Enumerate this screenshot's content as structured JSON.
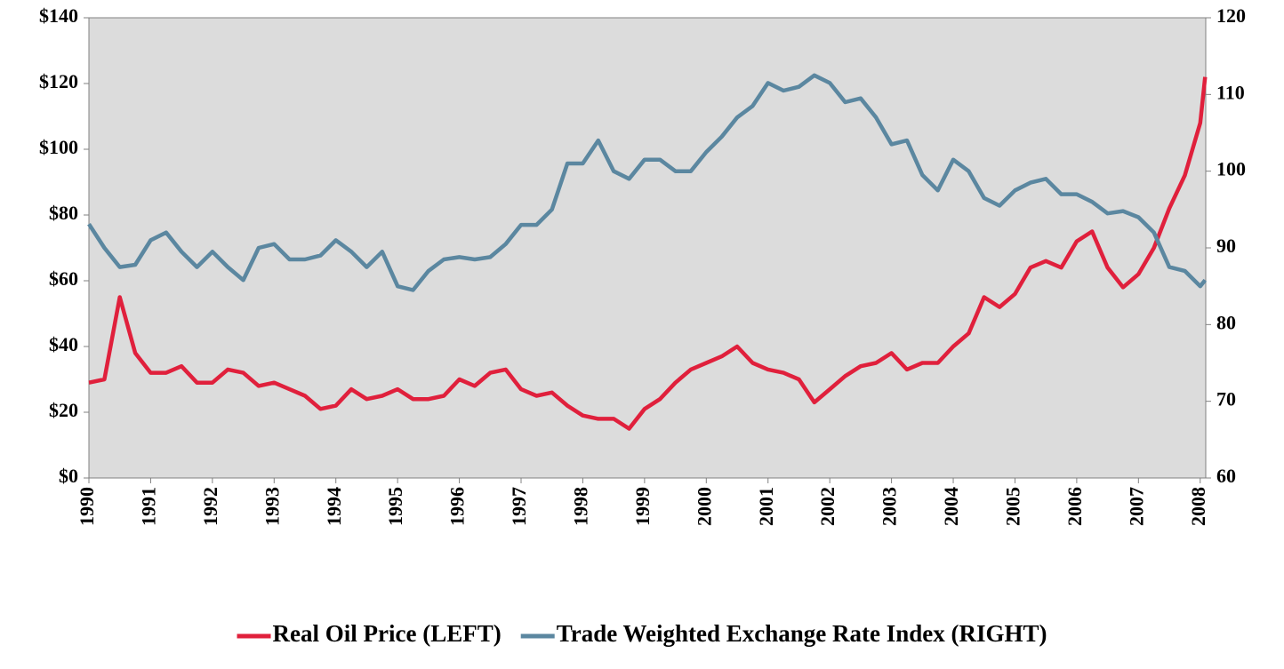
{
  "chart_data": {
    "type": "line",
    "x": [
      1990,
      1990.25,
      1990.5,
      1990.75,
      1991,
      1991.25,
      1991.5,
      1991.75,
      1992,
      1992.25,
      1992.5,
      1992.75,
      1993,
      1993.25,
      1993.5,
      1993.75,
      1994,
      1994.25,
      1994.5,
      1994.75,
      1995,
      1995.25,
      1995.5,
      1995.75,
      1996,
      1996.25,
      1996.5,
      1996.75,
      1997,
      1997.25,
      1997.5,
      1997.75,
      1998,
      1998.25,
      1998.5,
      1998.75,
      1999,
      1999.25,
      1999.5,
      1999.75,
      2000,
      2000.25,
      2000.5,
      2000.75,
      2001,
      2001.25,
      2001.5,
      2001.75,
      2002,
      2002.25,
      2002.5,
      2002.75,
      2003,
      2003.25,
      2003.5,
      2003.75,
      2004,
      2004.25,
      2004.5,
      2004.75,
      2005,
      2005.25,
      2005.5,
      2005.75,
      2006,
      2006.25,
      2006.5,
      2006.75,
      2007,
      2007.25,
      2007.5,
      2007.75,
      2008,
      2008.08
    ],
    "series": [
      {
        "name": "Real Oil Price (LEFT)",
        "color": "#e0203c",
        "axis": "y",
        "values": [
          29,
          30,
          55,
          38,
          32,
          32,
          34,
          29,
          29,
          33,
          32,
          28,
          29,
          27,
          25,
          21,
          22,
          27,
          24,
          25,
          27,
          24,
          24,
          25,
          30,
          28,
          32,
          33,
          27,
          25,
          26,
          22,
          19,
          18,
          18,
          15,
          21,
          24,
          29,
          33,
          35,
          37,
          40,
          35,
          33,
          32,
          30,
          23,
          27,
          31,
          34,
          35,
          38,
          33,
          35,
          35,
          40,
          44,
          55,
          52,
          56,
          64,
          66,
          64,
          72,
          75,
          64,
          58,
          62,
          70,
          82,
          92,
          108,
          122
        ]
      },
      {
        "name": "Trade Weighted Exchange Rate Index (RIGHT)",
        "color": "#5b87a0",
        "axis": "y2",
        "values": [
          93.1,
          90,
          87.5,
          87.8,
          91,
          92,
          89.5,
          87.5,
          89.5,
          87.5,
          85.8,
          90,
          90.5,
          88.5,
          88.5,
          89,
          91,
          89.5,
          87.5,
          89.5,
          85,
          84.5,
          87,
          88.5,
          88.8,
          88.5,
          88.8,
          90.5,
          93,
          93,
          95,
          101,
          101,
          104,
          100,
          99,
          101.5,
          101.5,
          100,
          100,
          102.5,
          104.5,
          107,
          108.5,
          111.5,
          110.5,
          111,
          112.5,
          111.5,
          109,
          109.5,
          107,
          103.5,
          104,
          99.5,
          97.5,
          101.5,
          100,
          96.5,
          95.5,
          97.5,
          98.5,
          99,
          97,
          97,
          96,
          94.5,
          94.8,
          94,
          92,
          87.5,
          87,
          85,
          85.8
        ]
      }
    ],
    "xlim": [
      1990,
      2008.09
    ],
    "xticks": [
      1990,
      1991,
      1992,
      1993,
      1994,
      1995,
      1996,
      1997,
      1998,
      1999,
      2000,
      2001,
      2002,
      2003,
      2004,
      2005,
      2006,
      2007,
      2008
    ],
    "ylim": [
      0,
      140
    ],
    "yticks": [
      {
        "value": 0,
        "label": "$0"
      },
      {
        "value": 20,
        "label": "$20"
      },
      {
        "value": 40,
        "label": "$40"
      },
      {
        "value": 60,
        "label": "$60"
      },
      {
        "value": 80,
        "label": "$80"
      },
      {
        "value": 100,
        "label": "$100"
      },
      {
        "value": 120,
        "label": "$120"
      },
      {
        "value": 140,
        "label": "$140"
      }
    ],
    "y2lim": [
      60,
      120
    ],
    "y2ticks": [
      60,
      70,
      80,
      90,
      100,
      110,
      120
    ],
    "legend": "bottom"
  }
}
